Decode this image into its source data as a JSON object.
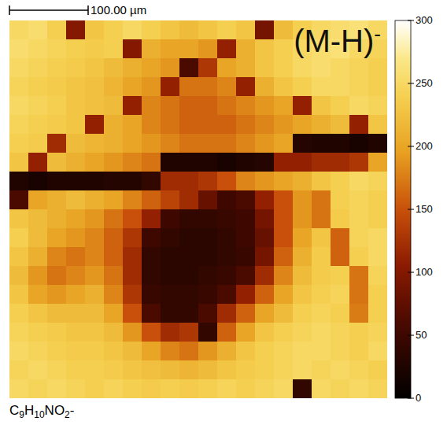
{
  "chart_data": {
    "type": "heatmap",
    "title": "(M-H)-",
    "subtitle": "C9H10NO2-",
    "scale_bar": {
      "label": "100.00 µm",
      "length": 100,
      "field_width": 480
    },
    "colorbar": {
      "range": [
        0,
        300
      ],
      "ticks": [
        0,
        50,
        100,
        150,
        200,
        250,
        300
      ]
    },
    "cells": [
      [
        250,
        255,
        240,
        100,
        230,
        240,
        250,
        240,
        230,
        220,
        230,
        240,
        230,
        90,
        220,
        240,
        250,
        255,
        260,
        250
      ],
      [
        255,
        250,
        245,
        240,
        235,
        240,
        100,
        210,
        200,
        200,
        190,
        110,
        210,
        230,
        240,
        250,
        255,
        260,
        250,
        245
      ],
      [
        250,
        245,
        240,
        235,
        230,
        220,
        210,
        200,
        190,
        60,
        130,
        200,
        210,
        230,
        240,
        250,
        255,
        250,
        245,
        240
      ],
      [
        245,
        240,
        235,
        230,
        225,
        215,
        200,
        190,
        110,
        170,
        170,
        180,
        110,
        210,
        230,
        240,
        250,
        250,
        245,
        240
      ],
      [
        250,
        245,
        240,
        230,
        225,
        220,
        110,
        180,
        170,
        160,
        160,
        170,
        180,
        190,
        200,
        110,
        230,
        240,
        250,
        245
      ],
      [
        245,
        240,
        235,
        230,
        110,
        210,
        200,
        180,
        170,
        160,
        160,
        160,
        170,
        180,
        190,
        200,
        210,
        220,
        110,
        230
      ],
      [
        240,
        235,
        120,
        220,
        215,
        210,
        200,
        190,
        180,
        170,
        170,
        170,
        180,
        190,
        200,
        30,
        25,
        25,
        20,
        25
      ],
      [
        230,
        110,
        220,
        210,
        200,
        190,
        180,
        170,
        25,
        25,
        25,
        20,
        25,
        30,
        110,
        110,
        120,
        120,
        130,
        200
      ],
      [
        25,
        20,
        25,
        25,
        25,
        30,
        30,
        40,
        120,
        120,
        130,
        150,
        180,
        190,
        200,
        210,
        230,
        240,
        250,
        245
      ],
      [
        60,
        200,
        210,
        220,
        210,
        200,
        180,
        160,
        140,
        120,
        80,
        50,
        60,
        110,
        150,
        190,
        170,
        240,
        245,
        240
      ],
      [
        230,
        220,
        210,
        200,
        190,
        170,
        150,
        110,
        50,
        40,
        40,
        45,
        50,
        90,
        150,
        190,
        170,
        235,
        245,
        240
      ],
      [
        240,
        220,
        200,
        190,
        180,
        160,
        130,
        50,
        40,
        35,
        35,
        40,
        50,
        80,
        150,
        200,
        230,
        160,
        245,
        250
      ],
      [
        230,
        210,
        180,
        170,
        180,
        160,
        120,
        40,
        35,
        35,
        35,
        40,
        45,
        90,
        160,
        210,
        235,
        160,
        240,
        250
      ],
      [
        220,
        190,
        170,
        180,
        190,
        170,
        120,
        40,
        35,
        35,
        40,
        45,
        60,
        120,
        180,
        220,
        235,
        240,
        170,
        245
      ],
      [
        230,
        200,
        190,
        200,
        210,
        180,
        130,
        45,
        40,
        40,
        45,
        60,
        110,
        160,
        200,
        230,
        240,
        245,
        170,
        240
      ],
      [
        240,
        230,
        220,
        220,
        220,
        200,
        150,
        60,
        40,
        40,
        60,
        120,
        160,
        200,
        220,
        240,
        245,
        240,
        175,
        240
      ],
      [
        245,
        240,
        235,
        230,
        230,
        220,
        190,
        150,
        120,
        130,
        40,
        160,
        200,
        230,
        240,
        245,
        250,
        245,
        240,
        245
      ],
      [
        250,
        245,
        240,
        235,
        235,
        230,
        220,
        200,
        180,
        170,
        190,
        210,
        230,
        240,
        245,
        250,
        250,
        245,
        240,
        250
      ],
      [
        245,
        250,
        245,
        240,
        240,
        235,
        230,
        225,
        220,
        215,
        220,
        230,
        235,
        240,
        245,
        250,
        245,
        250,
        245,
        240
      ],
      [
        250,
        245,
        250,
        245,
        240,
        245,
        240,
        235,
        240,
        235,
        240,
        245,
        240,
        245,
        250,
        40,
        250,
        245,
        250,
        245
      ]
    ]
  }
}
